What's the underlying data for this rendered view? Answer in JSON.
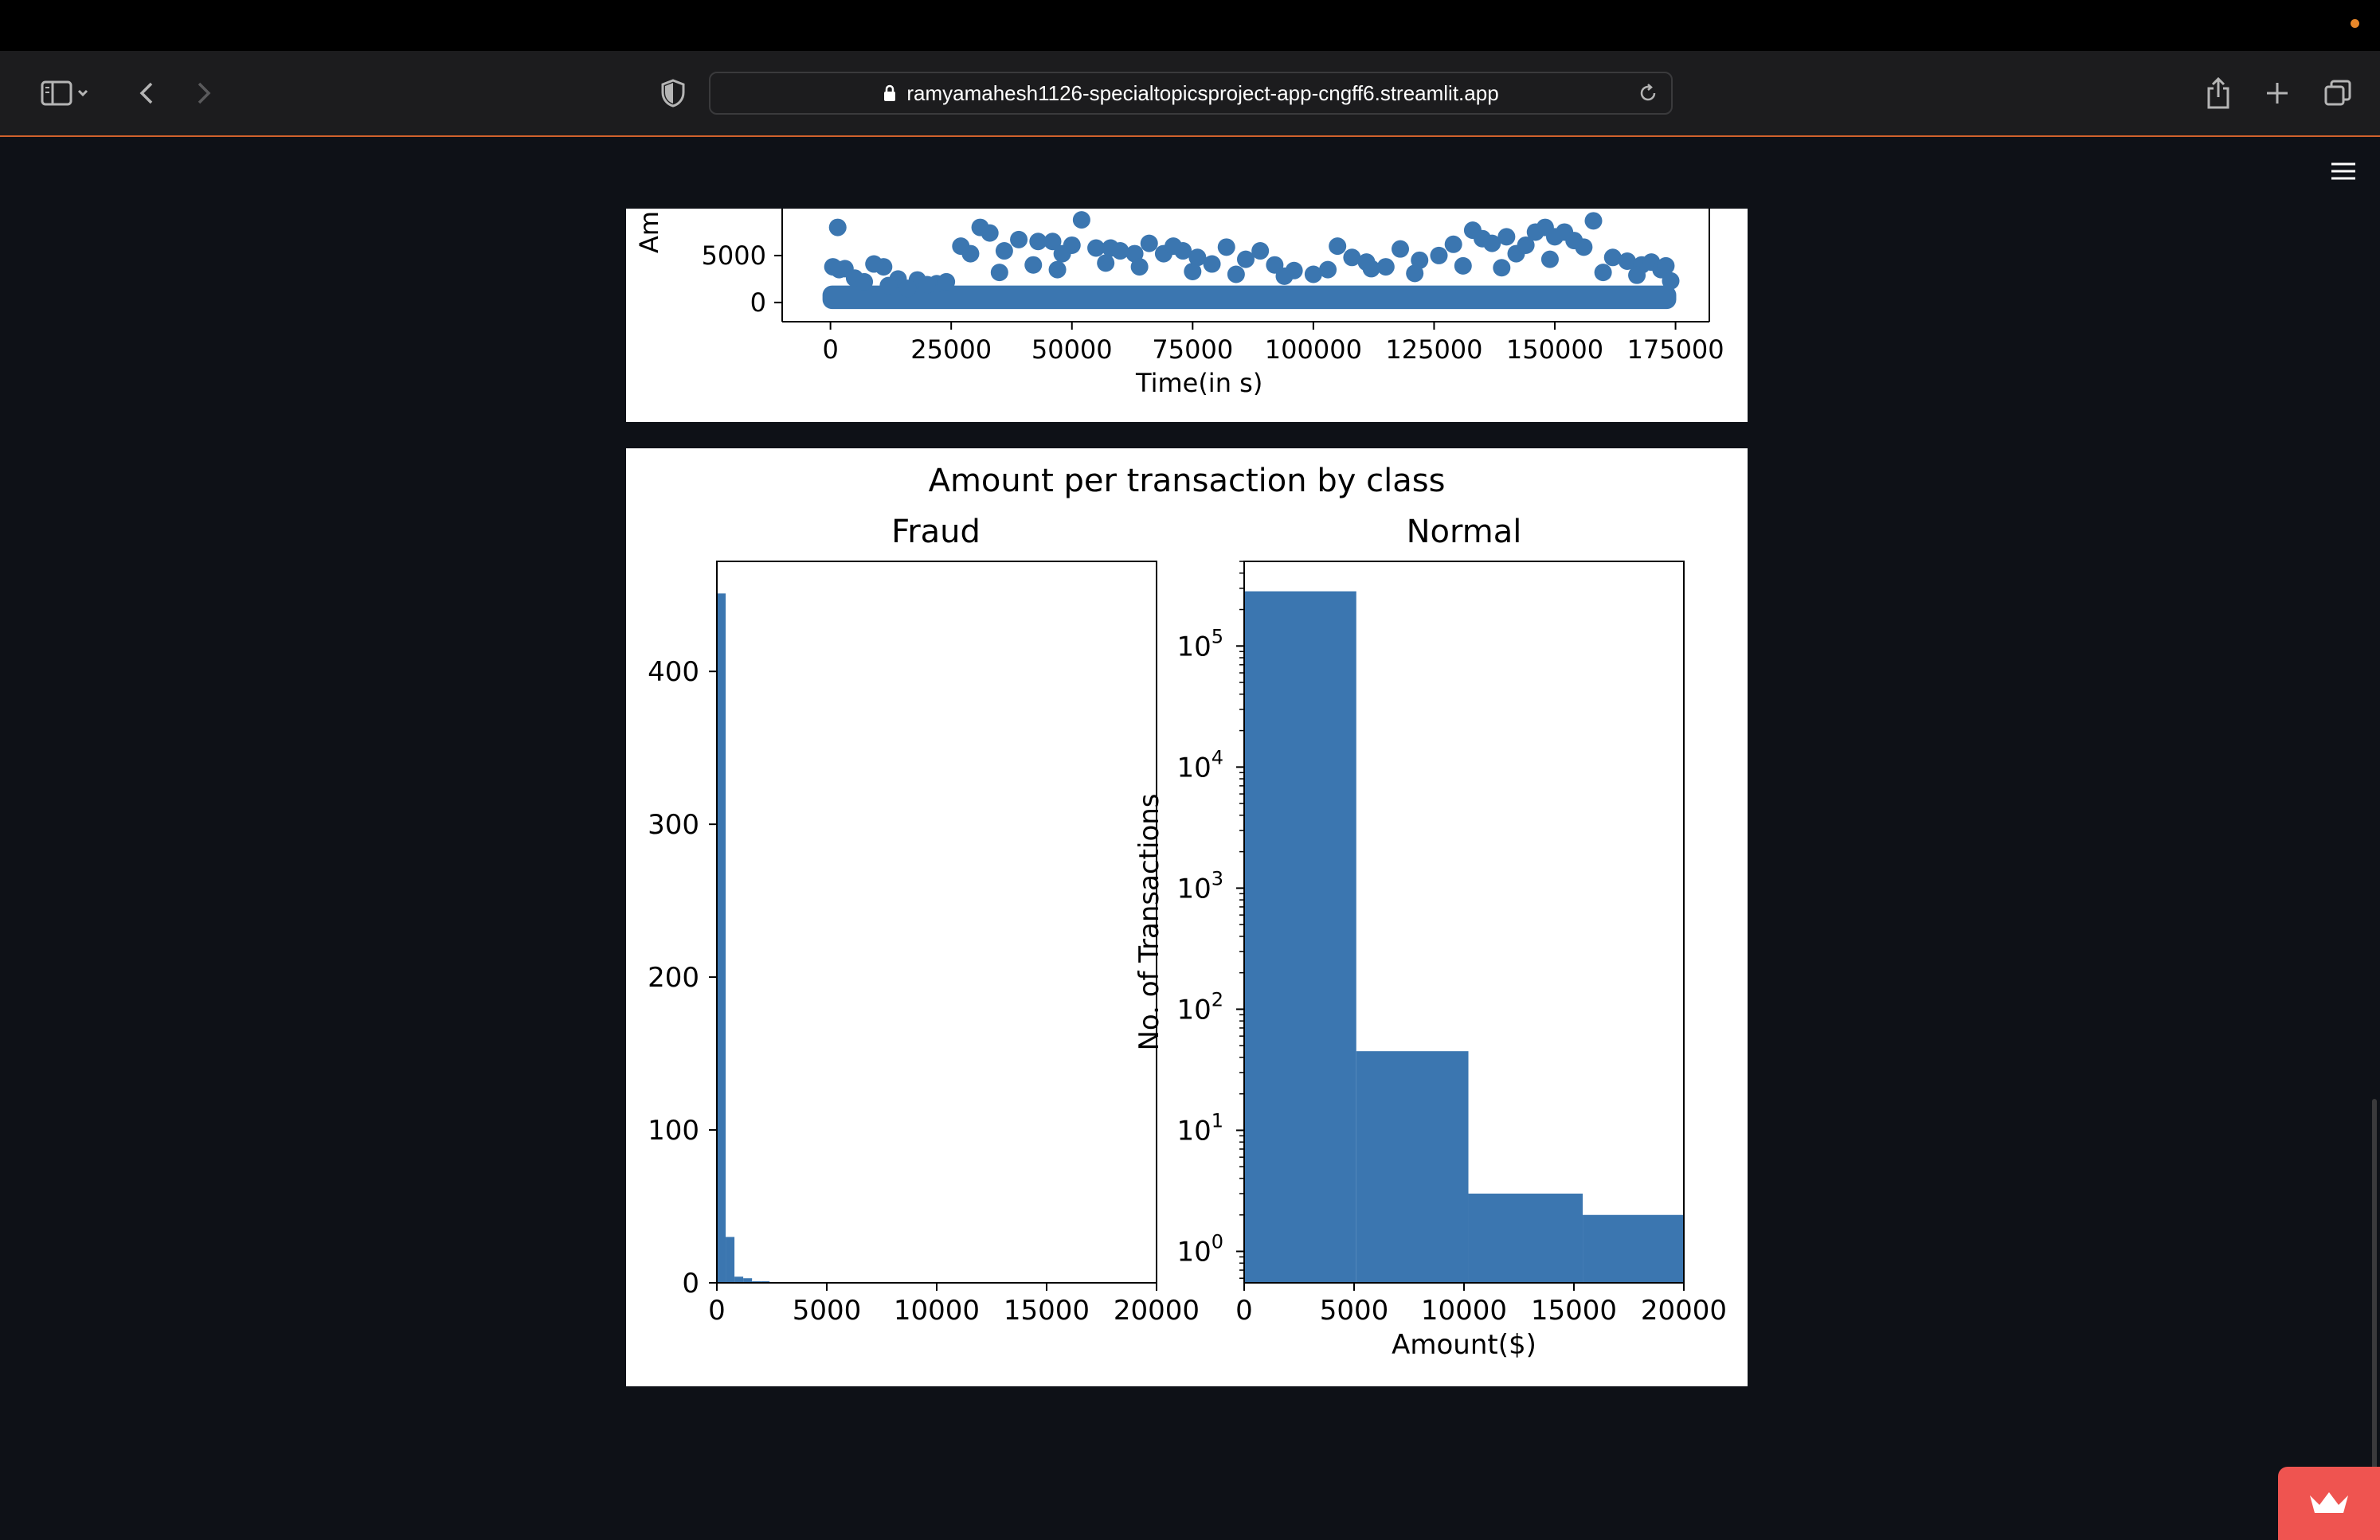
{
  "browser": {
    "url": "ramyamahesh1126-specialtopicsproject-app-cngff6.streamlit.app"
  },
  "icons": {
    "sidebar": "sidebar-icon",
    "back": "chevron-left-icon",
    "forward": "chevron-right-icon",
    "shield": "shield-icon",
    "lock": "lock-icon",
    "reload": "reload-icon",
    "share": "share-icon",
    "new_tab": "plus-icon",
    "tabs": "tabs-icon",
    "menu": "hamburger-menu-icon",
    "crown": "crown-icon"
  },
  "colors": {
    "series": "#3b76b0",
    "accent": "#ef5450"
  },
  "chart_data": [
    {
      "type": "scatter",
      "xlabel": "Time(in s)",
      "ylabel_visible": "Am",
      "xticks": [
        "0",
        "25000",
        "50000",
        "75000",
        "100000",
        "125000",
        "150000",
        "175000"
      ],
      "yticks": [
        "0",
        "5000"
      ],
      "xlim": [
        -10000,
        182000
      ],
      "ylim_visible": [
        -1200,
        10000
      ],
      "points": [
        [
          1500,
          8000
        ],
        [
          500,
          3800
        ],
        [
          1800,
          3500
        ],
        [
          3000,
          3600
        ],
        [
          9000,
          4100
        ],
        [
          11000,
          3800
        ],
        [
          14000,
          2500
        ],
        [
          18000,
          2400
        ],
        [
          22000,
          2000
        ],
        [
          27000,
          6000
        ],
        [
          29000,
          5200
        ],
        [
          31000,
          8000
        ],
        [
          33000,
          7400
        ],
        [
          36000,
          5500
        ],
        [
          39000,
          6700
        ],
        [
          43000,
          6500
        ],
        [
          46000,
          6500
        ],
        [
          48000,
          5200
        ],
        [
          50000,
          6100
        ],
        [
          52000,
          8800
        ],
        [
          55000,
          5800
        ],
        [
          58000,
          5800
        ],
        [
          60000,
          5500
        ],
        [
          63000,
          5200
        ],
        [
          66000,
          6300
        ],
        [
          69000,
          5200
        ],
        [
          71000,
          6000
        ],
        [
          73000,
          5500
        ],
        [
          76000,
          4800
        ],
        [
          79000,
          4100
        ],
        [
          82000,
          5900
        ],
        [
          86000,
          4600
        ],
        [
          89000,
          5500
        ],
        [
          92000,
          4000
        ],
        [
          96000,
          3400
        ],
        [
          100000,
          3000
        ],
        [
          105000,
          6000
        ],
        [
          108000,
          4800
        ],
        [
          111000,
          4300
        ],
        [
          115000,
          3800
        ],
        [
          118000,
          5700
        ],
        [
          122000,
          4500
        ],
        [
          126000,
          5000
        ],
        [
          129000,
          6200
        ],
        [
          133000,
          7700
        ],
        [
          135000,
          6800
        ],
        [
          137000,
          6300
        ],
        [
          140000,
          7000
        ],
        [
          142000,
          5200
        ],
        [
          144000,
          6100
        ],
        [
          146000,
          7500
        ],
        [
          148000,
          8000
        ],
        [
          150000,
          7000
        ],
        [
          152000,
          7500
        ],
        [
          154000,
          6600
        ],
        [
          156000,
          5900
        ],
        [
          158000,
          8700
        ],
        [
          162000,
          4800
        ],
        [
          165000,
          4400
        ],
        [
          168000,
          4000
        ],
        [
          170000,
          4300
        ],
        [
          172000,
          3500
        ],
        [
          173000,
          3900
        ],
        [
          174000,
          2300
        ],
        [
          5000,
          2600
        ],
        [
          7000,
          2200
        ],
        [
          12000,
          1800
        ],
        [
          16000,
          1500
        ],
        [
          20000,
          1900
        ],
        [
          24000,
          2200
        ],
        [
          35000,
          3200
        ],
        [
          42000,
          4000
        ],
        [
          47000,
          3500
        ],
        [
          57000,
          4200
        ],
        [
          64000,
          3800
        ],
        [
          75000,
          3300
        ],
        [
          84000,
          3000
        ],
        [
          94000,
          2800
        ],
        [
          103000,
          3500
        ],
        [
          112000,
          3600
        ],
        [
          121000,
          3100
        ],
        [
          131000,
          3900
        ],
        [
          139000,
          3700
        ],
        [
          149000,
          4600
        ],
        [
          160000,
          3200
        ],
        [
          167000,
          2900
        ]
      ]
    },
    {
      "type": "bar",
      "title": "Amount per transaction by class",
      "subplots": [
        {
          "title": "Fraud",
          "xticks": [
            "0",
            "5000",
            "10000",
            "15000",
            "20000"
          ],
          "yticks": [
            "0",
            "100",
            "200",
            "300",
            "400"
          ],
          "xlim": [
            0,
            20000
          ],
          "ylim": [
            0,
            472
          ],
          "bins": [
            [
              0,
              400,
              451
            ],
            [
              400,
              800,
              30
            ],
            [
              800,
              1200,
              4
            ],
            [
              1200,
              1600,
              3
            ],
            [
              1600,
              2000,
              1
            ],
            [
              2000,
              2400,
              1
            ]
          ]
        },
        {
          "title": "Normal",
          "xlabel": "Amount($)",
          "ylabel": "No. of Transactions",
          "yscale": "log",
          "xticks": [
            "0",
            "5000",
            "10000",
            "15000",
            "20000"
          ],
          "yticks": [
            {
              "base": "10",
              "exp": "0",
              "value": 1
            },
            {
              "base": "10",
              "exp": "1",
              "value": 10
            },
            {
              "base": "10",
              "exp": "2",
              "value": 100
            },
            {
              "base": "10",
              "exp": "3",
              "value": 1000
            },
            {
              "base": "10",
              "exp": "4",
              "value": 10000
            },
            {
              "base": "10",
              "exp": "5",
              "value": 100000
            }
          ],
          "xlim": [
            0,
            20000
          ],
          "ylim": [
            0.55,
            500000
          ],
          "bins": [
            [
              0,
              5100,
              283000
            ],
            [
              5100,
              10200,
              45
            ],
            [
              10200,
              15400,
              3
            ],
            [
              15400,
              20000,
              2
            ]
          ]
        }
      ]
    }
  ]
}
